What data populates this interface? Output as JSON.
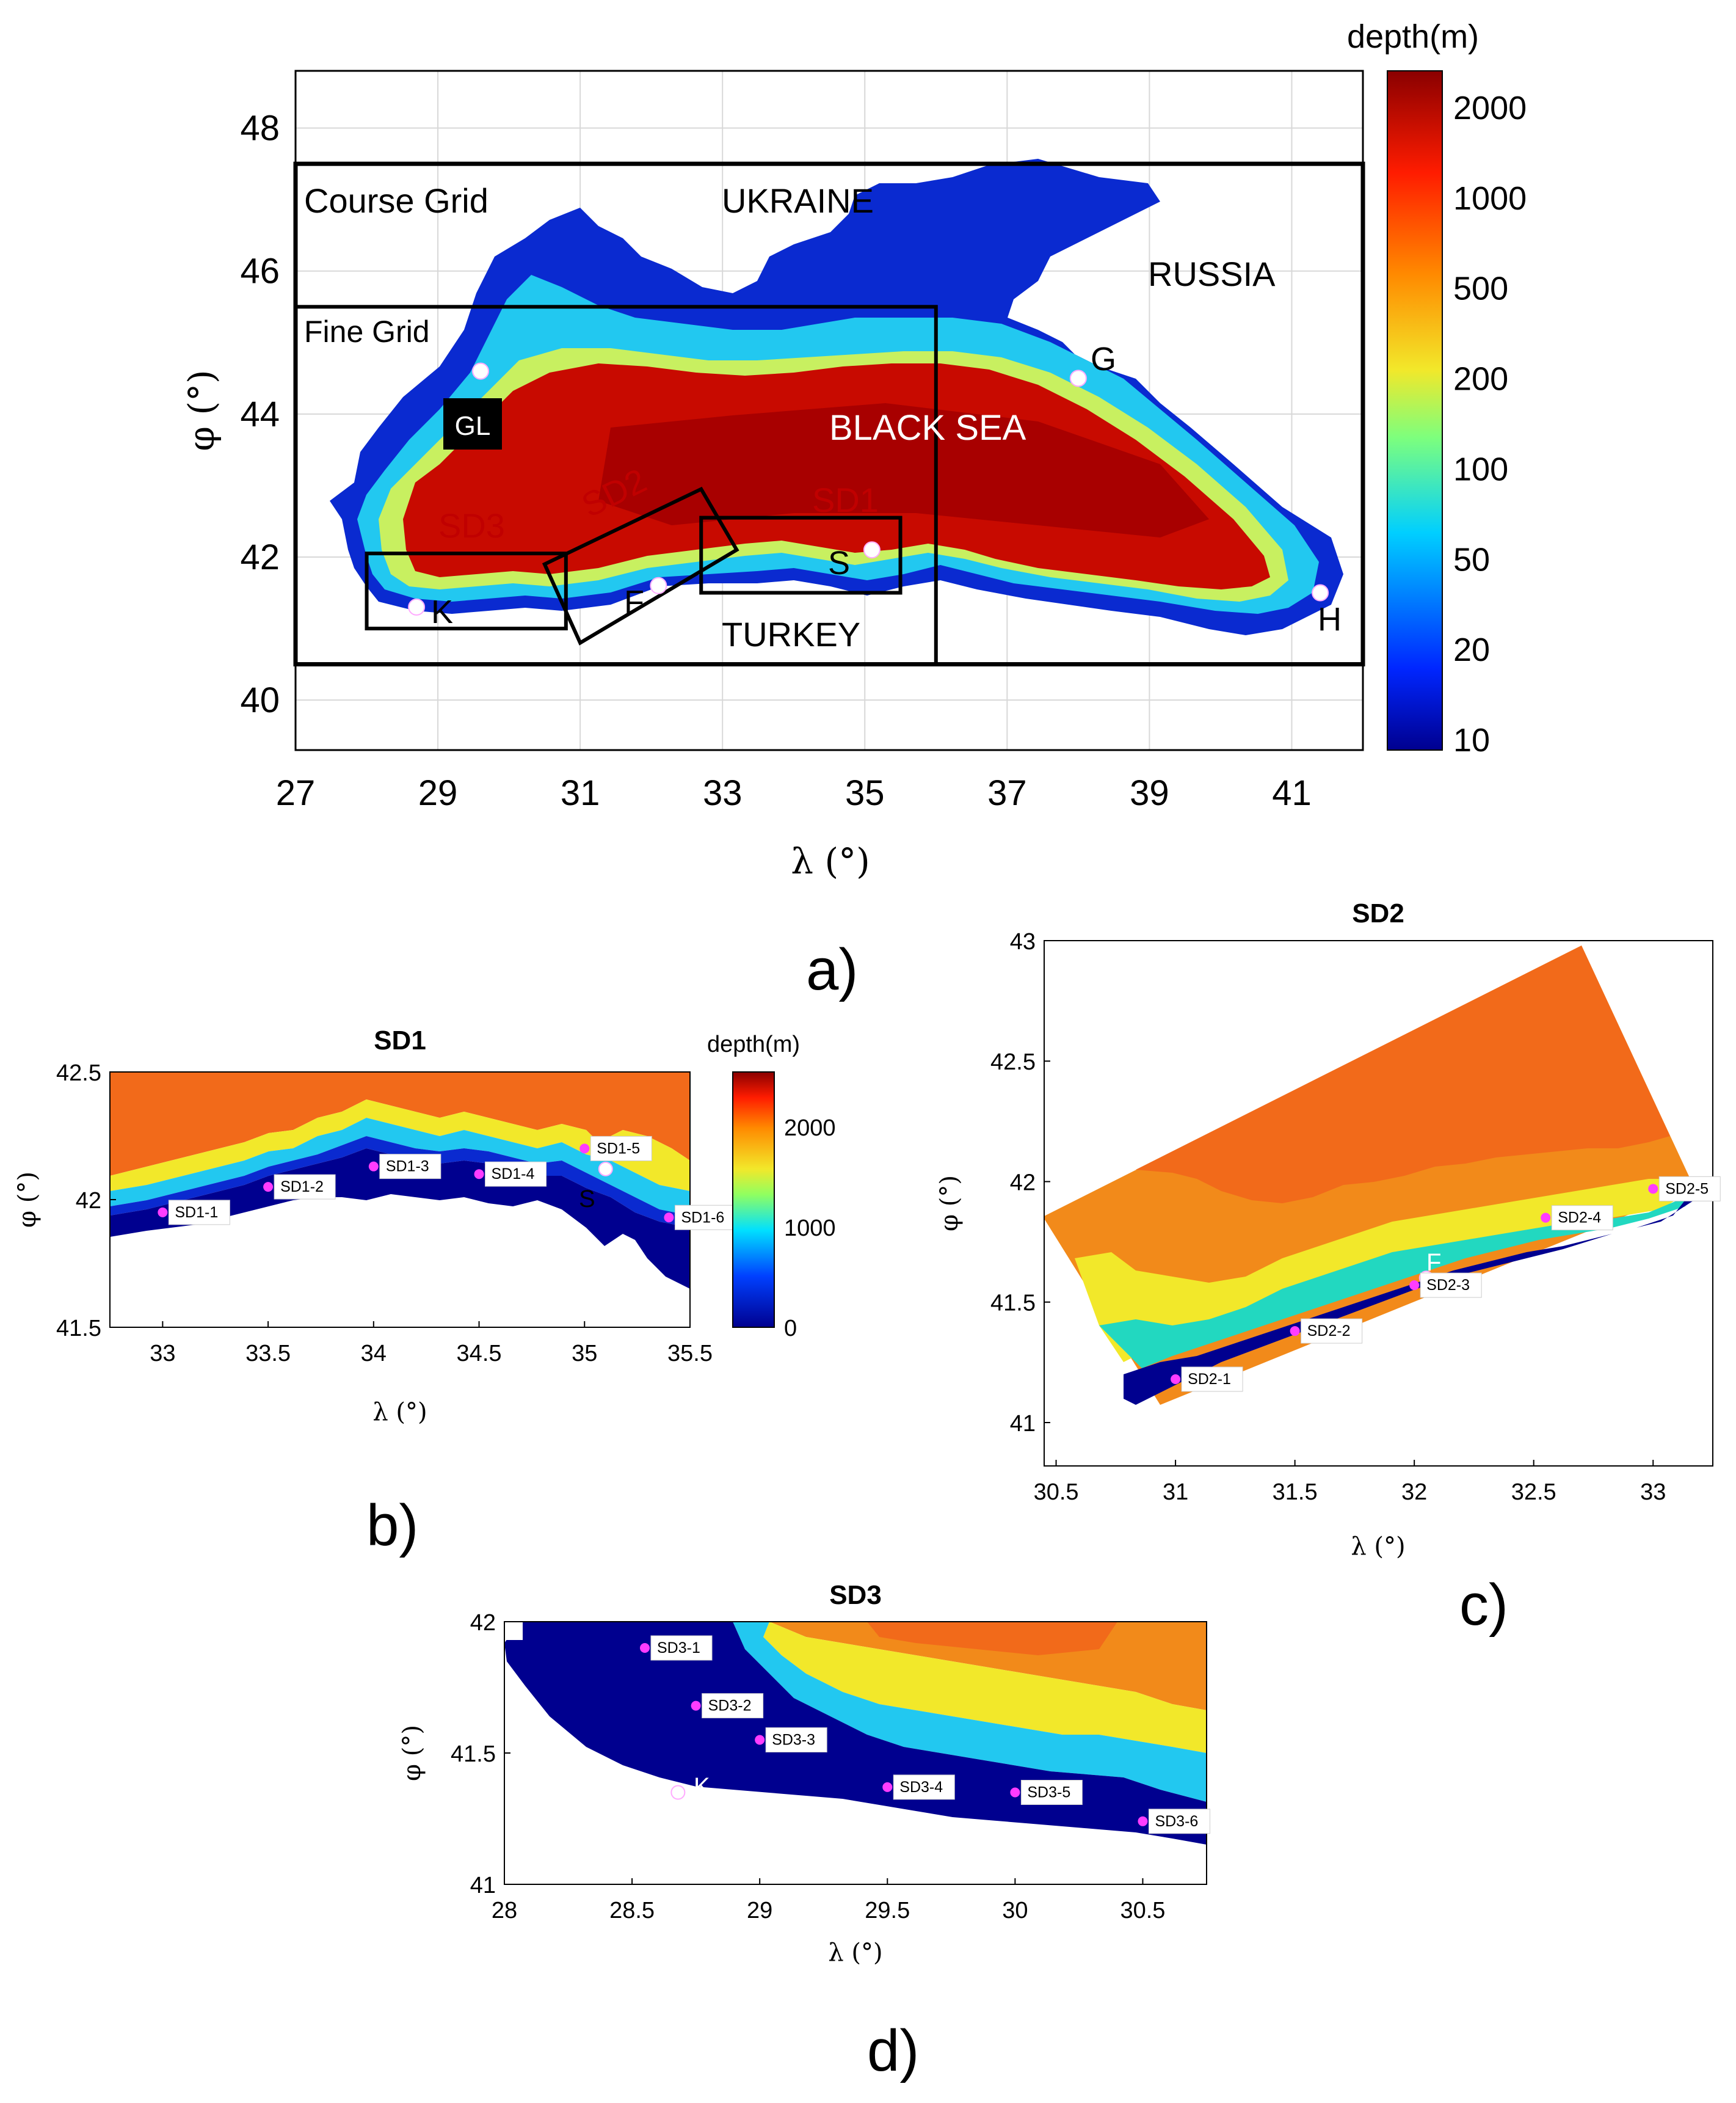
{
  "colors": {
    "deep": "#b40000",
    "red": "#dc1e00",
    "orange": "#f26a1a",
    "yellow": "#f2e82a",
    "cyan": "#22d8e8",
    "blue": "#0a2ad0",
    "navy": "#00008f",
    "land": "#ffffff",
    "frame": "#000000",
    "station": "#ff3cff",
    "marker": "#ffffff"
  },
  "panel_a": {
    "panel_letter": "a)",
    "colorbar_title": "depth(m)",
    "colorbar_ticks": [
      {
        "value": "2000"
      },
      {
        "value": "1000"
      },
      {
        "value": "500"
      },
      {
        "value": "200"
      },
      {
        "value": "100"
      },
      {
        "value": "50"
      },
      {
        "value": "20"
      },
      {
        "value": "10"
      }
    ],
    "x_axis_label": "λ (°)",
    "y_axis_label": "φ (°)",
    "x_range": [
      27,
      42
    ],
    "y_range": [
      39.3,
      48.8
    ],
    "x_ticks": [
      27,
      29,
      31,
      33,
      35,
      37,
      39,
      41
    ],
    "y_ticks": [
      40,
      42,
      44,
      46,
      48
    ],
    "labels": {
      "course_grid": "Course Grid",
      "fine_grid": "Fine Grid",
      "ukraine": "UKRAINE",
      "russia": "RUSSIA",
      "black_sea": "BLACK SEA",
      "turkey": "TURKEY",
      "sd1": "SD1",
      "sd2": "SD2",
      "sd3": "SD3",
      "gl": "GL",
      "g": "G",
      "k": "K",
      "f": "F",
      "s": "S",
      "h": "H"
    },
    "course_grid_extent": {
      "lon": [
        27,
        42
      ],
      "lat": [
        40.5,
        47.5
      ]
    },
    "fine_grid_extent": {
      "lon": [
        27,
        36
      ],
      "lat": [
        40.5,
        45.5
      ]
    },
    "sd1_extent": {
      "lon": [
        32.7,
        35.5
      ],
      "lat": [
        41.5,
        42.55
      ]
    },
    "sd3_extent": {
      "lon": [
        28,
        30.8
      ],
      "lat": [
        41,
        42.05
      ]
    },
    "sd2_corners": [
      [
        30.5,
        41.9
      ],
      [
        32.7,
        42.95
      ],
      [
        33.2,
        42.1
      ],
      [
        31,
        40.8
      ]
    ],
    "points": [
      {
        "label": "GL",
        "lon": 29.6,
        "lat": 44.6
      },
      {
        "label": "G",
        "lon": 38,
        "lat": 44.5
      },
      {
        "label": "K",
        "lon": 28.7,
        "lat": 41.3
      },
      {
        "label": "F",
        "lon": 32.1,
        "lat": 41.6
      },
      {
        "label": "S",
        "lon": 35.1,
        "lat": 42.1
      },
      {
        "label": "H",
        "lon": 41.4,
        "lat": 41.5
      }
    ]
  },
  "panel_b": {
    "panel_letter": "b)",
    "title": "SD1",
    "colorbar_title": "depth(m)",
    "colorbar_ticks": [
      {
        "value": "2000"
      },
      {
        "value": "1000"
      },
      {
        "value": "0"
      }
    ],
    "x_axis_label": "λ (°)",
    "y_axis_label": "φ (°)",
    "x_range": [
      32.75,
      35.5
    ],
    "y_range": [
      41.5,
      42.5
    ],
    "x_ticks": [
      {
        "v": 33,
        "t": "33"
      },
      {
        "v": 33.5,
        "t": "33.5"
      },
      {
        "v": 34,
        "t": "34"
      },
      {
        "v": 34.5,
        "t": "34.5"
      },
      {
        "v": 35,
        "t": "35"
      },
      {
        "v": 35.5,
        "t": "35.5"
      }
    ],
    "y_ticks": [
      {
        "v": 41.5,
        "t": "41.5"
      },
      {
        "v": 42,
        "t": "42"
      },
      {
        "v": 42.5,
        "t": "42.5"
      }
    ],
    "marker_label": "S",
    "marker": {
      "lon": 35.1,
      "lat": 42.12
    },
    "stations": [
      {
        "label": "SD1-1",
        "lon": 33.0,
        "lat": 41.95
      },
      {
        "label": "SD1-2",
        "lon": 33.5,
        "lat": 42.05
      },
      {
        "label": "SD1-3",
        "lon": 34.0,
        "lat": 42.13
      },
      {
        "label": "SD1-4",
        "lon": 34.5,
        "lat": 42.1
      },
      {
        "label": "SD1-5",
        "lon": 35.0,
        "lat": 42.2
      },
      {
        "label": "SD1-6",
        "lon": 35.4,
        "lat": 41.93
      }
    ]
  },
  "panel_c": {
    "panel_letter": "c)",
    "title": "SD2",
    "x_axis_label": "λ (°)",
    "y_axis_label": "φ (°)",
    "x_range": [
      30.45,
      33.25
    ],
    "y_range": [
      40.82,
      43.0
    ],
    "x_ticks": [
      {
        "v": 30.5,
        "t": "30.5"
      },
      {
        "v": 31,
        "t": "31"
      },
      {
        "v": 31.5,
        "t": "31.5"
      },
      {
        "v": 32,
        "t": "32"
      },
      {
        "v": 32.5,
        "t": "32.5"
      },
      {
        "v": 33,
        "t": "33"
      }
    ],
    "y_ticks": [
      {
        "v": 41,
        "t": "41"
      },
      {
        "v": 41.5,
        "t": "41.5"
      },
      {
        "v": 42,
        "t": "42"
      },
      {
        "v": 42.5,
        "t": "42.5"
      },
      {
        "v": 43,
        "t": "43"
      }
    ],
    "marker_label": "F",
    "marker": {
      "lon": 32.05,
      "lat": 41.6
    },
    "stations": [
      {
        "label": "SD2-1",
        "lon": 31.0,
        "lat": 41.18
      },
      {
        "label": "SD2-2",
        "lon": 31.5,
        "lat": 41.38
      },
      {
        "label": "SD2-3",
        "lon": 32.0,
        "lat": 41.57
      },
      {
        "label": "SD2-4",
        "lon": 32.55,
        "lat": 41.85
      },
      {
        "label": "SD2-5",
        "lon": 33.0,
        "lat": 41.97
      }
    ]
  },
  "panel_d": {
    "panel_letter": "d)",
    "title": "SD3",
    "x_axis_label": "λ (°)",
    "y_axis_label": "φ (°)",
    "x_range": [
      28,
      30.75
    ],
    "y_range": [
      41,
      42
    ],
    "x_ticks": [
      {
        "v": 28,
        "t": "28"
      },
      {
        "v": 28.5,
        "t": "28.5"
      },
      {
        "v": 29,
        "t": "29"
      },
      {
        "v": 29.5,
        "t": "29.5"
      },
      {
        "v": 30,
        "t": "30"
      },
      {
        "v": 30.5,
        "t": "30.5"
      }
    ],
    "y_ticks": [
      {
        "v": 41,
        "t": "41"
      },
      {
        "v": 41.5,
        "t": "41.5"
      },
      {
        "v": 42,
        "t": "42"
      }
    ],
    "marker_label": "K",
    "marker": {
      "lon": 28.68,
      "lat": 41.35
    },
    "stations": [
      {
        "label": "SD3-1",
        "lon": 28.55,
        "lat": 41.9
      },
      {
        "label": "SD3-2",
        "lon": 28.75,
        "lat": 41.68
      },
      {
        "label": "SD3-3",
        "lon": 29.0,
        "lat": 41.55
      },
      {
        "label": "SD3-4",
        "lon": 29.5,
        "lat": 41.37
      },
      {
        "label": "SD3-5",
        "lon": 30.0,
        "lat": 41.35
      },
      {
        "label": "SD3-6",
        "lon": 30.5,
        "lat": 41.24
      }
    ]
  }
}
